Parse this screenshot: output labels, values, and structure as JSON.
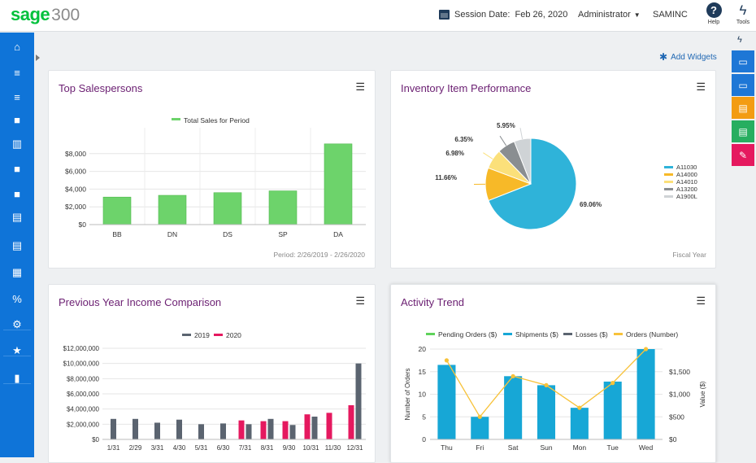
{
  "topbar": {
    "logo_brand": "sage",
    "logo_version": "300",
    "session_label": "Session Date:",
    "session_date": "Feb 26, 2020",
    "user": "Administrator",
    "company": "SAMINC",
    "help_label": "Help",
    "tools_label": "Tools"
  },
  "add_widgets": "Add Widgets",
  "sidebar": {
    "items": [
      {
        "name": "home-icon",
        "glyph": "⌂"
      },
      {
        "name": "document-export-icon",
        "glyph": "≡"
      },
      {
        "name": "document-import-icon",
        "glyph": "≡"
      },
      {
        "name": "lock-icon",
        "glyph": "■"
      },
      {
        "name": "bank-icon",
        "glyph": "▥"
      },
      {
        "name": "briefcase-icon",
        "glyph": "■"
      },
      {
        "name": "folder-icon",
        "glyph": "■"
      },
      {
        "name": "cabinet-icon",
        "glyph": "▤"
      },
      {
        "name": "note-icon",
        "glyph": "▤"
      },
      {
        "name": "spreadsheet-icon",
        "glyph": "▦"
      },
      {
        "name": "percent-icon",
        "glyph": "%"
      },
      {
        "name": "settings-icon",
        "glyph": "⚙"
      },
      {
        "name": "star-settings-icon",
        "glyph": "★"
      },
      {
        "name": "bar-chart-icon",
        "glyph": "▮"
      }
    ]
  },
  "right_rail": [
    {
      "name": "window-badge-icon",
      "color": "#1e77d6",
      "glyph": "▭"
    },
    {
      "name": "window-clock-icon",
      "color": "#1e77d6",
      "glyph": "▭"
    },
    {
      "name": "orange-report-icon",
      "color": "#f39c12",
      "glyph": "▤"
    },
    {
      "name": "green-report-icon",
      "color": "#27ae60",
      "glyph": "▤"
    },
    {
      "name": "pen-icon",
      "color": "#e5195f",
      "glyph": "✎"
    }
  ],
  "widgets": {
    "top_sales": {
      "title": "Top Salespersons",
      "footer": "Period: 2/26/2019 - 2/26/2020"
    },
    "inventory": {
      "title": "Inventory Item Performance",
      "footer": "Fiscal Year"
    },
    "income": {
      "title": "Previous Year Income Comparison"
    },
    "activity": {
      "title": "Activity Trend"
    }
  },
  "chart_data": [
    {
      "id": "top_sales",
      "type": "bar",
      "categories": [
        "BB",
        "DN",
        "DS",
        "SP",
        "DA"
      ],
      "series": [
        {
          "name": "Total Sales for Period",
          "values": [
            3100,
            3300,
            3600,
            3800,
            9100
          ]
        }
      ],
      "ylim": [
        0,
        10000
      ],
      "yticks": [
        "$0",
        "$2,000",
        "$4,000",
        "$6,000",
        "$8,000"
      ],
      "colors": [
        "#6dd36b"
      ],
      "legend": "top-center",
      "grid": true
    },
    {
      "id": "inventory",
      "type": "pie",
      "labels": [
        "A11030",
        "A14000",
        "A14010",
        "A13200",
        "A1900L"
      ],
      "values": [
        69.06,
        11.66,
        6.98,
        6.35,
        5.95
      ],
      "value_labels": [
        "69.06%",
        "11.66%",
        "6.98%",
        "6.35%",
        "5.95%"
      ],
      "colors": [
        "#2fb3d9",
        "#f7b928",
        "#fbe07a",
        "#8a8e91",
        "#cfd3d6"
      ],
      "legend": "right"
    },
    {
      "id": "income",
      "type": "bar",
      "categories": [
        "1/31",
        "2/29",
        "3/31",
        "4/30",
        "5/31",
        "6/30",
        "7/31",
        "8/31",
        "9/30",
        "10/31",
        "11/30",
        "12/31"
      ],
      "series": [
        {
          "name": "2019",
          "values": [
            2700000,
            2700000,
            2200000,
            2600000,
            2000000,
            2100000,
            2000000,
            2700000,
            1900000,
            3000000,
            0,
            10000000
          ]
        },
        {
          "name": "2020",
          "values": [
            0,
            0,
            0,
            0,
            0,
            0,
            2500000,
            2400000,
            2400000,
            3300000,
            3500000,
            4500000
          ]
        }
      ],
      "ylim": [
        0,
        12000000
      ],
      "yticks": [
        "$0",
        "$2,000,000",
        "$4,000,000",
        "$6,000,000",
        "$8,000,000",
        "$10,000,000",
        "$12,000,000"
      ],
      "colors": [
        "#5b6470",
        "#e5195f"
      ],
      "legend": "top-center",
      "grid": true
    },
    {
      "id": "activity",
      "type": "bar",
      "categories": [
        "Thu",
        "Fri",
        "Sat",
        "Sun",
        "Mon",
        "Tue",
        "Wed"
      ],
      "series": [
        {
          "name": "Pending Orders ($)",
          "values": [
            0,
            0,
            0,
            0,
            0,
            0,
            0
          ]
        },
        {
          "name": "Shipments ($)",
          "values": [
            16.5,
            5,
            14,
            12,
            7,
            12.8,
            20
          ]
        },
        {
          "name": "Losses ($)",
          "values": [
            0,
            0,
            0,
            0,
            0,
            0,
            0
          ]
        },
        {
          "name": "Orders (Number)",
          "values": [
            1750,
            500,
            1400,
            1200,
            700,
            1250,
            2000
          ]
        }
      ],
      "ylabel": "Number of Orders",
      "y2label": "Value ($)",
      "ylim": [
        0,
        20
      ],
      "y2lim": [
        0,
        2000
      ],
      "yticks": [
        "0",
        "5",
        "10",
        "15",
        "20"
      ],
      "y2ticks": [
        "$0",
        "$500",
        "$1,000",
        "$1,500"
      ],
      "colors": [
        "#5fd35a",
        "#17a7d6",
        "#5b6470",
        "#f7c23a"
      ],
      "legend": "top-center",
      "grid": true
    }
  ]
}
